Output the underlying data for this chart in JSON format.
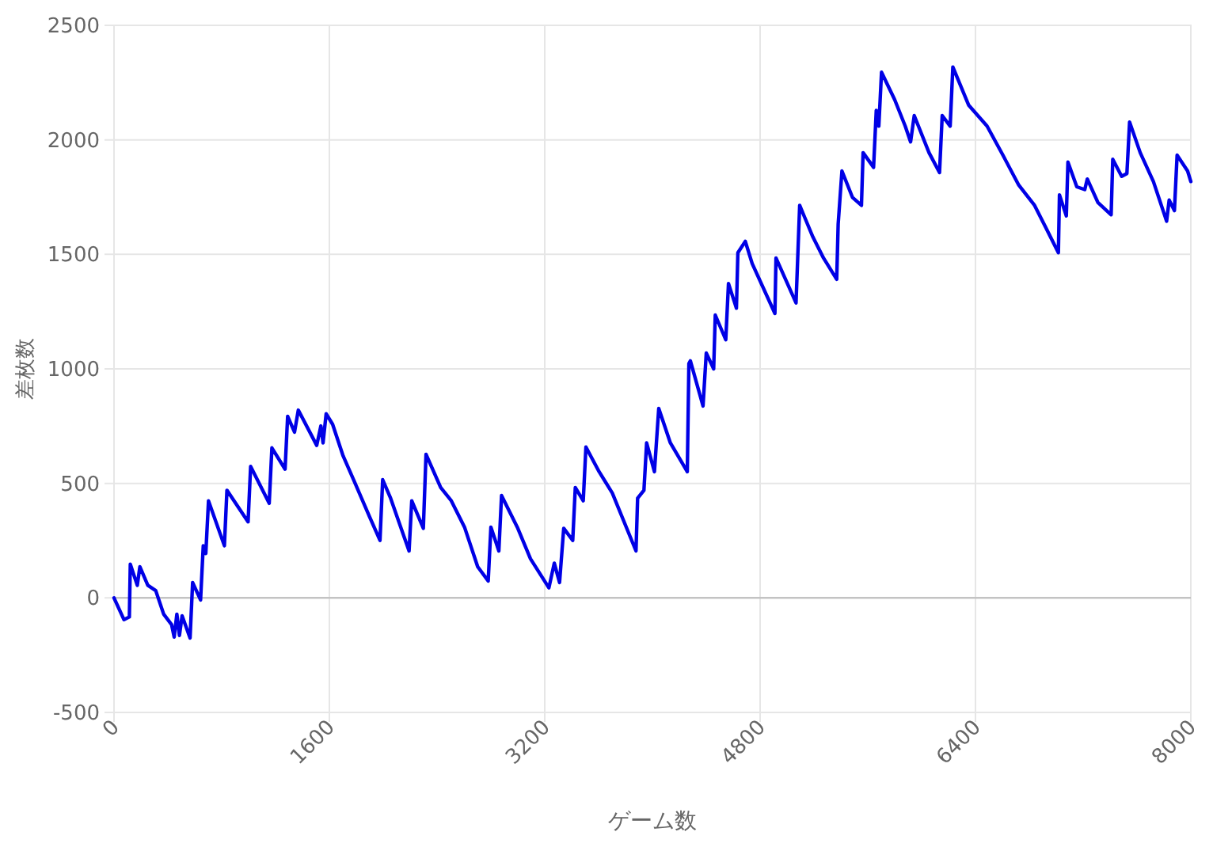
{
  "chart_data": {
    "type": "line",
    "xlabel": "ゲーム数",
    "ylabel": "差枚数",
    "x": [
      0,
      74,
      114,
      121,
      173,
      192,
      251,
      310,
      369,
      428,
      447,
      467,
      486,
      506,
      565,
      584,
      643,
      663,
      682,
      702,
      820,
      839,
      996,
      1015,
      1153,
      1173,
      1271,
      1290,
      1341,
      1369,
      1506,
      1537,
      1553,
      1576,
      1624,
      1702,
      1780,
      1898,
      1976,
      1996,
      2055,
      2192,
      2212,
      2298,
      2318,
      2427,
      2506,
      2604,
      2702,
      2780,
      2800,
      2859,
      2879,
      2996,
      3094,
      3231,
      3271,
      3310,
      3341,
      3408,
      3427,
      3486,
      3506,
      3604,
      3702,
      3878,
      3890,
      3937,
      3957,
      4015,
      4047,
      4133,
      4259,
      4271,
      4282,
      4376,
      4400,
      4455,
      4467,
      4545,
      4565,
      4624,
      4635,
      4690,
      4741,
      4910,
      4918,
      5067,
      5094,
      5192,
      5271,
      5369,
      5380,
      5408,
      5486,
      5553,
      5565,
      5643,
      5663,
      5682,
      5702,
      5800,
      5878,
      5918,
      5945,
      6055,
      6133,
      6153,
      6212,
      6232,
      6349,
      6486,
      6604,
      6722,
      6839,
      6918,
      7016,
      7024,
      7075,
      7087,
      7153,
      7212,
      7231,
      7310,
      7408,
      7420,
      7486,
      7525,
      7545,
      7624,
      7722,
      7820,
      7839,
      7878,
      7898,
      7976,
      8000
    ],
    "series": [
      {
        "color": "#0000e6",
        "values": [
          0,
          -95,
          -83,
          147,
          55,
          136,
          55,
          32,
          -71,
          -117,
          -171,
          -71,
          -164,
          -78,
          -175,
          67,
          -9,
          228,
          194,
          424,
          228,
          470,
          332,
          574,
          413,
          655,
          562,
          793,
          724,
          820,
          666,
          751,
          677,
          804,
          758,
          620,
          516,
          355,
          251,
          516,
          435,
          205,
          424,
          304,
          627,
          482,
          424,
          309,
          136,
          74,
          309,
          205,
          447,
          309,
          171,
          44,
          152,
          67,
          304,
          251,
          482,
          424,
          659,
          551,
          458,
          205,
          435,
          470,
          677,
          551,
          827,
          677,
          551,
          1023,
          1035,
          838,
          1069,
          1000,
          1235,
          1127,
          1373,
          1265,
          1507,
          1557,
          1460,
          1242,
          1484,
          1288,
          1714,
          1576,
          1484,
          1391,
          1633,
          1864,
          1749,
          1714,
          1944,
          1880,
          2129,
          2060,
          2295,
          2175,
          2060,
          1991,
          2106,
          1944,
          1857,
          2106,
          2060,
          2318,
          2152,
          2060,
          1933,
          1802,
          1714,
          1622,
          1507,
          1760,
          1668,
          1903,
          1795,
          1783,
          1829,
          1726,
          1673,
          1915,
          1841,
          1853,
          2078,
          1944,
          1818,
          1645,
          1737,
          1691,
          1933,
          1864,
          1818
        ]
      }
    ],
    "xlim": [
      0,
      8000
    ],
    "xticks": [
      0,
      1600,
      3200,
      4800,
      6400,
      8000
    ],
    "ylim": [
      -500,
      2500
    ],
    "yticks": [
      -500,
      0,
      500,
      1000,
      1500,
      2000,
      2500
    ],
    "grid": true,
    "ref_lines": [
      {
        "axis": "y",
        "value": 0,
        "color": "#bbbbbb"
      }
    ]
  }
}
